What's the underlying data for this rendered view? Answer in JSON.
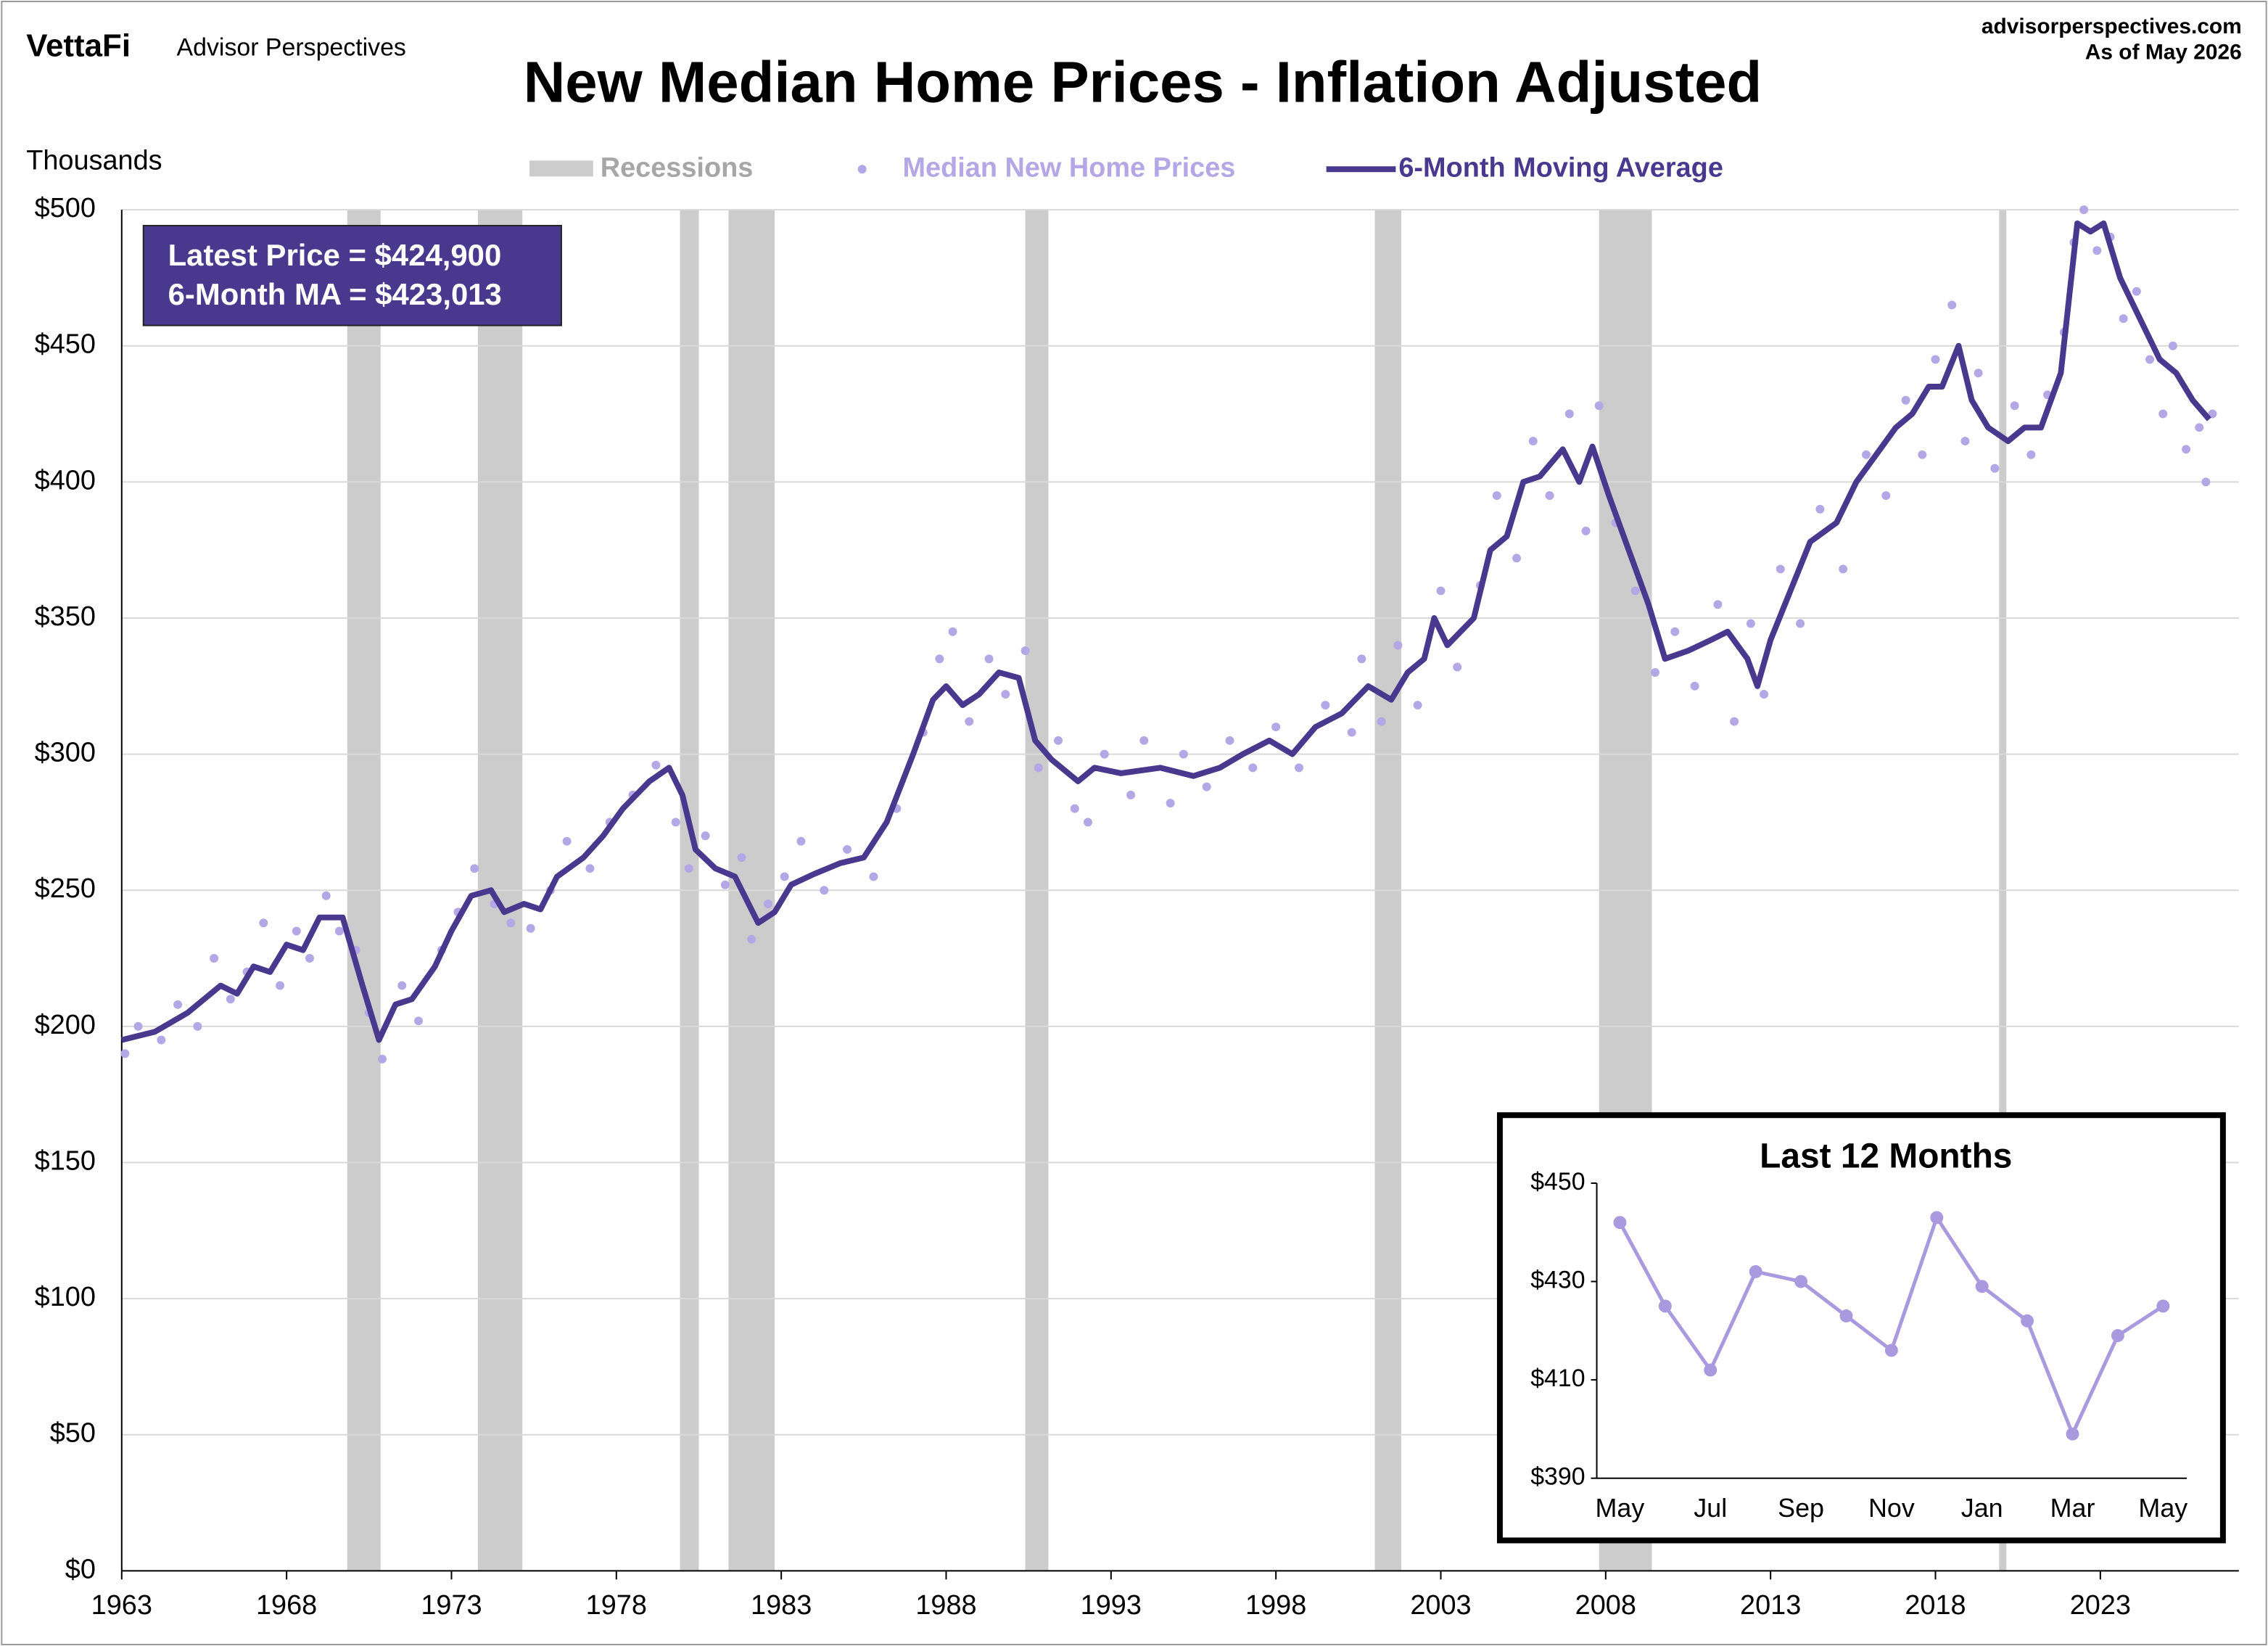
{
  "header": {
    "brand": "VettaFi",
    "subbrand": "Advisor Perspectives",
    "site": "advisorperspectives.com",
    "date": "As of May 2026"
  },
  "chart_data": [
    {
      "type": "line",
      "title": "New Median Home Prices - Inflation Adjusted",
      "y_label": "Thousands",
      "xlim": [
        1963,
        2027.2
      ],
      "ylim": [
        0,
        500
      ],
      "xticks": [
        1963,
        1968,
        1973,
        1978,
        1983,
        1988,
        1993,
        1998,
        2003,
        2008,
        2013,
        2018,
        2023
      ],
      "yticks": [
        {
          "value": 0,
          "label": "$0"
        },
        {
          "value": 50,
          "label": "$50"
        },
        {
          "value": 100,
          "label": "$100"
        },
        {
          "value": 150,
          "label": "$150"
        },
        {
          "value": 200,
          "label": "$200"
        },
        {
          "value": 250,
          "label": "$250"
        },
        {
          "value": 300,
          "label": "$300"
        },
        {
          "value": 350,
          "label": "$350"
        },
        {
          "value": 400,
          "label": "$400"
        },
        {
          "value": 450,
          "label": "$450"
        },
        {
          "value": 500,
          "label": "$500"
        }
      ],
      "grid": true,
      "legend": "top",
      "recessions": {
        "name": "Recessions",
        "color": "#cccccc",
        "spans": [
          [
            1969.84,
            1970.85
          ],
          [
            1973.8,
            1975.15
          ],
          [
            1979.93,
            1980.5
          ],
          [
            1981.4,
            1982.8
          ],
          [
            1990.4,
            1991.1
          ],
          [
            2001.0,
            2001.8
          ],
          [
            2007.8,
            2009.4
          ],
          [
            2019.93,
            2020.15
          ]
        ]
      },
      "series": [
        {
          "name": "Median New Home Prices",
          "color": "#b4a7e5",
          "style": "scatter",
          "x": [
            1963.1,
            1963.5,
            1964.2,
            1964.7,
            1965.3,
            1965.8,
            1966.3,
            1966.8,
            1967.3,
            1967.8,
            1968.3,
            1968.7,
            1969.2,
            1969.6,
            1970.1,
            1970.5,
            1970.9,
            1971.5,
            1972,
            1972.7,
            1973.2,
            1973.7,
            1974.3,
            1974.8,
            1975.4,
            1976,
            1976.5,
            1977.2,
            1977.8,
            1978.5,
            1979.2,
            1979.8,
            1980.2,
            1980.7,
            1981.3,
            1981.8,
            1982.1,
            1982.6,
            1983.1,
            1983.6,
            1984.3,
            1985,
            1985.8,
            1986.5,
            1987.3,
            1987.8,
            1988.2,
            1988.7,
            1989.3,
            1989.8,
            1990.4,
            1990.8,
            1991.4,
            1991.9,
            1992.3,
            1992.8,
            1993.6,
            1994,
            1994.8,
            1995.2,
            1995.9,
            1996.6,
            1997.3,
            1998,
            1998.7,
            1999.5,
            2000.3,
            2000.6,
            2001.2,
            2001.7,
            2002.3,
            2003,
            2003.5,
            2004.2,
            2004.7,
            2005.3,
            2005.8,
            2006.3,
            2006.9,
            2007.4,
            2007.8,
            2008.3,
            2008.9,
            2009.5,
            2010.1,
            2010.7,
            2011.4,
            2011.9,
            2012.4,
            2012.8,
            2013.3,
            2013.9,
            2014.5,
            2015.2,
            2015.9,
            2016.5,
            2017.1,
            2017.6,
            2018,
            2018.5,
            2018.9,
            2019.3,
            2019.8,
            2020.4,
            2020.9,
            2021.4,
            2021.9,
            2022.2,
            2022.5,
            2022.9,
            2023.3,
            2023.7,
            2024.1,
            2024.5,
            2024.9,
            2025.2,
            2025.6,
            2026.0,
            2026.2,
            2026.4
          ],
          "values": [
            190,
            200,
            195,
            208,
            200,
            225,
            210,
            220,
            238,
            215,
            235,
            225,
            248,
            235,
            228,
            205,
            188,
            215,
            202,
            228,
            242,
            258,
            245,
            238,
            236,
            250,
            268,
            258,
            275,
            285,
            296,
            275,
            258,
            270,
            252,
            262,
            232,
            245,
            255,
            268,
            250,
            265,
            255,
            280,
            308,
            335,
            345,
            312,
            335,
            322,
            338,
            295,
            305,
            280,
            275,
            300,
            285,
            305,
            282,
            300,
            288,
            305,
            295,
            310,
            295,
            318,
            308,
            335,
            312,
            340,
            318,
            360,
            332,
            362,
            395,
            372,
            415,
            395,
            425,
            382,
            428,
            385,
            360,
            330,
            345,
            325,
            355,
            312,
            348,
            322,
            368,
            348,
            390,
            368,
            410,
            395,
            430,
            410,
            445,
            465,
            415,
            440,
            405,
            428,
            410,
            432,
            455,
            488,
            500,
            485,
            490,
            460,
            470,
            445,
            425,
            450,
            412,
            420,
            400,
            425
          ]
        },
        {
          "name": "6-Month Moving Average",
          "color": "#48398f",
          "style": "line",
          "x": [
            1963,
            1964,
            1965,
            1966,
            1966.5,
            1967,
            1967.5,
            1968,
            1968.5,
            1969,
            1969.7,
            1970.3,
            1970.8,
            1971.3,
            1971.8,
            1972.5,
            1973,
            1973.6,
            1974.2,
            1974.6,
            1975.2,
            1975.7,
            1976.2,
            1977,
            1977.6,
            1978.2,
            1979,
            1979.6,
            1980,
            1980.4,
            1981,
            1981.6,
            1982.3,
            1982.8,
            1983.3,
            1984,
            1984.8,
            1985.5,
            1986.2,
            1987,
            1987.6,
            1988,
            1988.5,
            1989,
            1989.6,
            1990.2,
            1990.7,
            1991.2,
            1992,
            1992.5,
            1993.3,
            1994.5,
            1995.5,
            1996.3,
            1997,
            1997.8,
            1998.5,
            1999.2,
            2000,
            2000.8,
            2001.5,
            2002,
            2002.5,
            2002.8,
            2003.2,
            2004,
            2004.5,
            2005,
            2005.5,
            2006,
            2006.7,
            2007.2,
            2007.6,
            2008.1,
            2008.7,
            2009.3,
            2009.8,
            2010.5,
            2011.2,
            2011.7,
            2012.3,
            2012.6,
            2013,
            2013.6,
            2014.2,
            2015,
            2015.6,
            2016.2,
            2016.8,
            2017.3,
            2017.8,
            2018.2,
            2018.7,
            2019.1,
            2019.6,
            2020.2,
            2020.7,
            2021.2,
            2021.8,
            2022.3,
            2022.7,
            2023.1,
            2023.6,
            2024.2,
            2024.8,
            2025.3,
            2025.8,
            2026.3
          ],
          "values": [
            195,
            198,
            205,
            215,
            212,
            222,
            220,
            230,
            228,
            240,
            240,
            215,
            195,
            208,
            210,
            222,
            235,
            248,
            250,
            242,
            245,
            243,
            255,
            262,
            270,
            280,
            290,
            295,
            285,
            265,
            258,
            255,
            238,
            242,
            252,
            256,
            260,
            262,
            275,
            300,
            320,
            325,
            318,
            322,
            330,
            328,
            305,
            298,
            290,
            295,
            293,
            295,
            292,
            295,
            300,
            305,
            300,
            310,
            315,
            325,
            320,
            330,
            335,
            350,
            340,
            350,
            375,
            380,
            400,
            402,
            412,
            400,
            413,
            395,
            375,
            355,
            335,
            338,
            342,
            345,
            335,
            325,
            342,
            360,
            378,
            385,
            400,
            410,
            420,
            425,
            435,
            435,
            450,
            430,
            420,
            415,
            420,
            420,
            440,
            495,
            492,
            495,
            475,
            460,
            445,
            440,
            430,
            423
          ]
        }
      ],
      "annotations": [
        "Latest Price = $424,900",
        "6-Month MA = $423,013"
      ]
    },
    {
      "type": "line",
      "title": "Last 12 Months",
      "color": "#a99ae0",
      "categories": [
        "May",
        null,
        "Jul",
        null,
        "Sep",
        null,
        "Nov",
        null,
        "Jan",
        null,
        "Mar",
        null,
        "May"
      ],
      "values": [
        442,
        425,
        412,
        432,
        430,
        423,
        416,
        443,
        429,
        422,
        399,
        419,
        425
      ],
      "ylim": [
        390,
        450
      ],
      "yticks": [
        {
          "value": 390,
          "label": "$390"
        },
        {
          "value": 410,
          "label": "$410"
        },
        {
          "value": 430,
          "label": "$430"
        },
        {
          "value": 450,
          "label": "$450"
        }
      ]
    }
  ]
}
